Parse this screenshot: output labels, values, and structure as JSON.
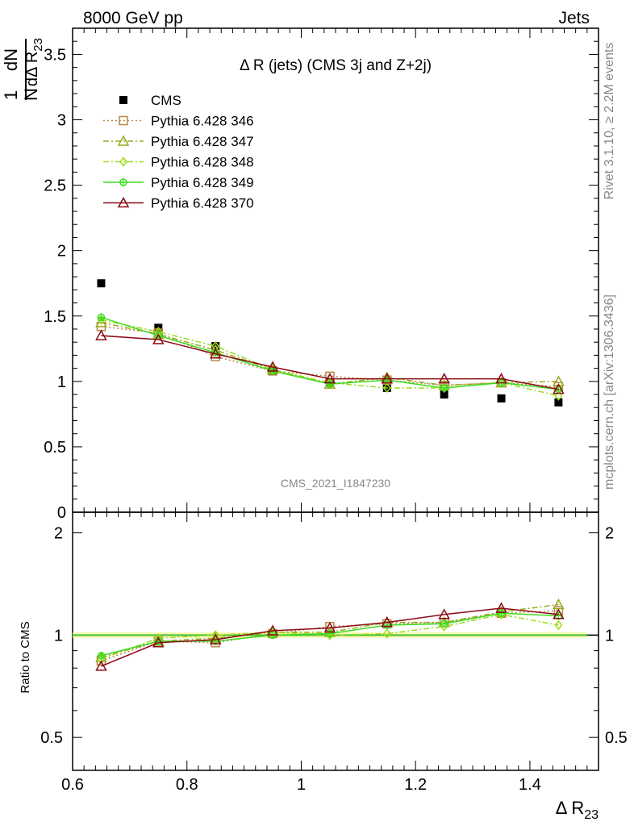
{
  "header": {
    "left": "8000 GeV pp",
    "right": "Jets"
  },
  "side_labels": {
    "rivet": "Rivet 3.1.10, ≥ 2.2M events",
    "mcplots": "mcplots.cern.ch [arXiv:1306.3436]"
  },
  "watermark": "CMS_2021_I1847230",
  "chart_data": [
    {
      "type": "scatter",
      "panel": "main",
      "title": "Δ R (jets) (CMS 3j and Z+2j)",
      "ylabel": "1/N dN/dΔ R23",
      "xlim": [
        0.6,
        1.52
      ],
      "ylim": [
        0,
        3.7
      ],
      "yticks": [
        "0",
        "0.5",
        "1",
        "1.5",
        "2",
        "2.5",
        "3",
        "3.5"
      ],
      "legend_position": "top-left",
      "x": [
        0.65,
        0.75,
        0.85,
        0.95,
        1.05,
        1.15,
        1.25,
        1.35,
        1.45
      ],
      "series": [
        {
          "name": "CMS",
          "color": "#000000",
          "marker": "square",
          "line": "none",
          "values": [
            1.75,
            1.41,
            1.27,
            1.08,
            0.99,
            0.95,
            0.9,
            0.87,
            0.84
          ]
        },
        {
          "name": "Pythia 6.428 346",
          "color": "#b8864b",
          "marker": "open-square",
          "line": "dotted",
          "values": [
            1.42,
            1.37,
            1.19,
            1.08,
            1.04,
            1.01,
            0.97,
            0.99,
            0.96
          ]
        },
        {
          "name": "Pythia 6.428 347",
          "color": "#9aaa1e",
          "marker": "open-triangle",
          "line": "dashdot",
          "values": [
            1.45,
            1.36,
            1.24,
            1.09,
            0.98,
            1.03,
            0.97,
            0.99,
            1.0
          ]
        },
        {
          "name": "Pythia 6.428 348",
          "color": "#9edc1e",
          "marker": "open-diamond",
          "line": "dashdot",
          "values": [
            1.47,
            1.38,
            1.27,
            1.09,
            0.99,
            0.95,
            0.95,
            0.99,
            0.89
          ]
        },
        {
          "name": "Pythia 6.428 349",
          "color": "#3cdc1e",
          "marker": "open-circle-cross",
          "line": "solid",
          "values": [
            1.49,
            1.35,
            1.22,
            1.08,
            0.98,
            1.01,
            0.95,
            0.99,
            0.94
          ]
        },
        {
          "name": "Pythia 6.428 370",
          "color": "#8b0a14",
          "marker": "open-triangle",
          "line": "solid",
          "values": [
            1.35,
            1.32,
            1.21,
            1.11,
            1.02,
            1.02,
            1.02,
            1.02,
            0.94
          ]
        }
      ]
    },
    {
      "type": "line",
      "panel": "ratio",
      "xlabel": "Δ R23",
      "ylabel": "Ratio to CMS",
      "xlim": [
        0.6,
        1.52
      ],
      "ylim": [
        0.4,
        2.3
      ],
      "yscale": "log",
      "xticks": [
        "0.6",
        "0.8",
        "1",
        "1.2",
        "1.4"
      ],
      "yticks": [
        "0.5",
        "1",
        "2"
      ],
      "reference_line": 1,
      "x": [
        0.65,
        0.75,
        0.85,
        0.95,
        1.05,
        1.15,
        1.25,
        1.35,
        1.45
      ],
      "series": [
        {
          "name": "Pythia 6.428 346",
          "color": "#b8864b",
          "marker": "open-square",
          "line": "dotted",
          "values": [
            0.84,
            0.96,
            0.95,
            1.01,
            1.06,
            1.08,
            1.09,
            1.16,
            1.18
          ]
        },
        {
          "name": "Pythia 6.428 347",
          "color": "#9aaa1e",
          "marker": "open-triangle",
          "line": "dashdot",
          "values": [
            0.86,
            0.96,
            0.98,
            1.02,
            1.02,
            1.09,
            1.09,
            1.17,
            1.23
          ]
        },
        {
          "name": "Pythia 6.428 348",
          "color": "#9edc1e",
          "marker": "open-diamond",
          "line": "dashdot",
          "values": [
            0.85,
            0.98,
            1.0,
            1.02,
            1.0,
            1.01,
            1.06,
            1.15,
            1.07
          ]
        },
        {
          "name": "Pythia 6.428 349",
          "color": "#3cdc1e",
          "marker": "open-circle-cross",
          "line": "solid",
          "values": [
            0.87,
            0.96,
            0.96,
            1.0,
            1.01,
            1.07,
            1.08,
            1.16,
            1.14
          ]
        },
        {
          "name": "Pythia 6.428 370",
          "color": "#8b0a14",
          "marker": "open-triangle",
          "line": "solid",
          "values": [
            0.81,
            0.95,
            0.97,
            1.03,
            1.05,
            1.09,
            1.15,
            1.2,
            1.15
          ]
        }
      ]
    }
  ]
}
